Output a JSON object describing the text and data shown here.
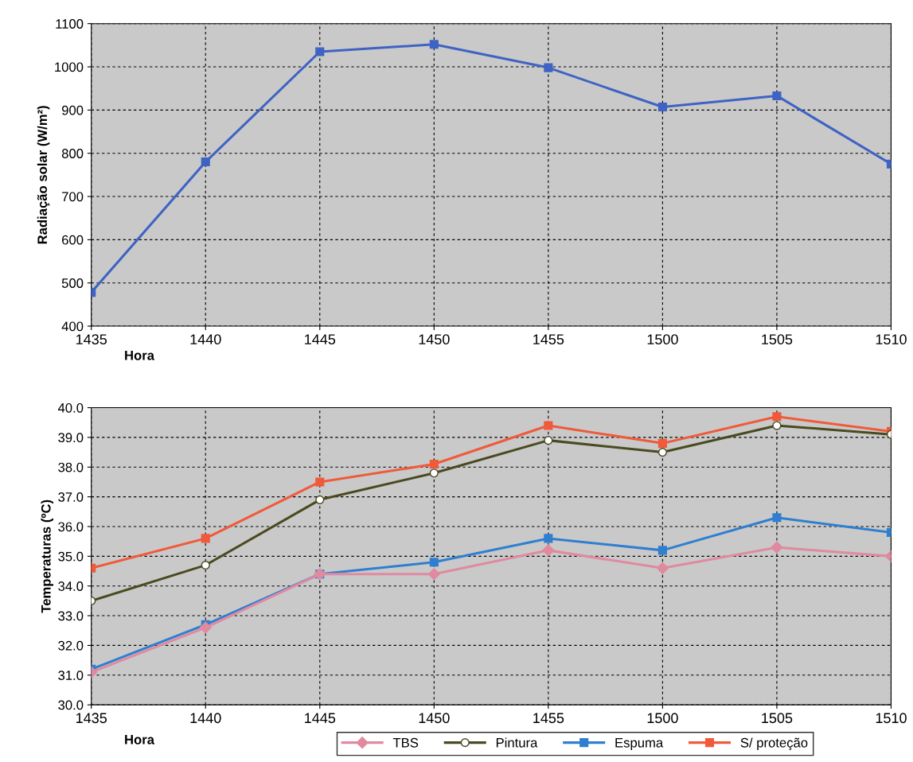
{
  "chart_data": [
    {
      "type": "line",
      "xlabel": "Hora",
      "ylabel": "Radiação solar (W/m²)",
      "categories": [
        "1435",
        "1440",
        "1445",
        "1450",
        "1455",
        "1500",
        "1505",
        "1510"
      ],
      "series": [
        {
          "color": "#3f63c4",
          "values": [
            478,
            780,
            1035,
            1052,
            998,
            907,
            933,
            775
          ]
        }
      ],
      "ylim": [
        400,
        1100
      ],
      "yticks": [
        400,
        500,
        600,
        700,
        800,
        900,
        1000,
        1100
      ],
      "grid": true,
      "marker": "square",
      "legend": false
    },
    {
      "type": "line",
      "xlabel": "Hora",
      "ylabel": "Temperaturas (ºC)",
      "categories": [
        "1435",
        "1440",
        "1445",
        "1450",
        "1455",
        "1500",
        "1505",
        "1510"
      ],
      "series": [
        {
          "name": "TBS",
          "color": "#e08aa0",
          "marker": "diamond",
          "values": [
            31.1,
            32.6,
            34.4,
            34.4,
            35.2,
            34.6,
            35.3,
            35.0
          ]
        },
        {
          "name": "Pintura",
          "color": "#4a4a20",
          "marker": "circle",
          "values": [
            33.5,
            34.7,
            36.9,
            37.8,
            38.9,
            38.5,
            39.4,
            39.1
          ]
        },
        {
          "name": "Espuma",
          "color": "#2f7fd0",
          "marker": "square",
          "values": [
            31.2,
            32.7,
            34.4,
            34.8,
            35.6,
            35.2,
            36.3,
            35.8
          ]
        },
        {
          "name": "S/ proteção",
          "color": "#f05a3a",
          "marker": "square",
          "values": [
            34.6,
            35.6,
            37.5,
            38.1,
            39.4,
            38.8,
            39.7,
            39.2
          ]
        }
      ],
      "ylim": [
        30,
        40
      ],
      "yticks": [
        {
          "value": 30,
          "label": "30.0"
        },
        {
          "value": 31,
          "label": "31.0"
        },
        {
          "value": 32,
          "label": "32.0"
        },
        {
          "value": 33,
          "label": "33.0"
        },
        {
          "value": 34,
          "label": "34.0"
        },
        {
          "value": 35,
          "label": "35.0"
        },
        {
          "value": 36,
          "label": "36.0"
        },
        {
          "value": 37,
          "label": "37.0"
        },
        {
          "value": 38,
          "label": "38.0"
        },
        {
          "value": 39,
          "label": "39.0"
        },
        {
          "value": 40,
          "label": "40.0"
        }
      ],
      "grid": true,
      "legend": "bottom"
    }
  ]
}
